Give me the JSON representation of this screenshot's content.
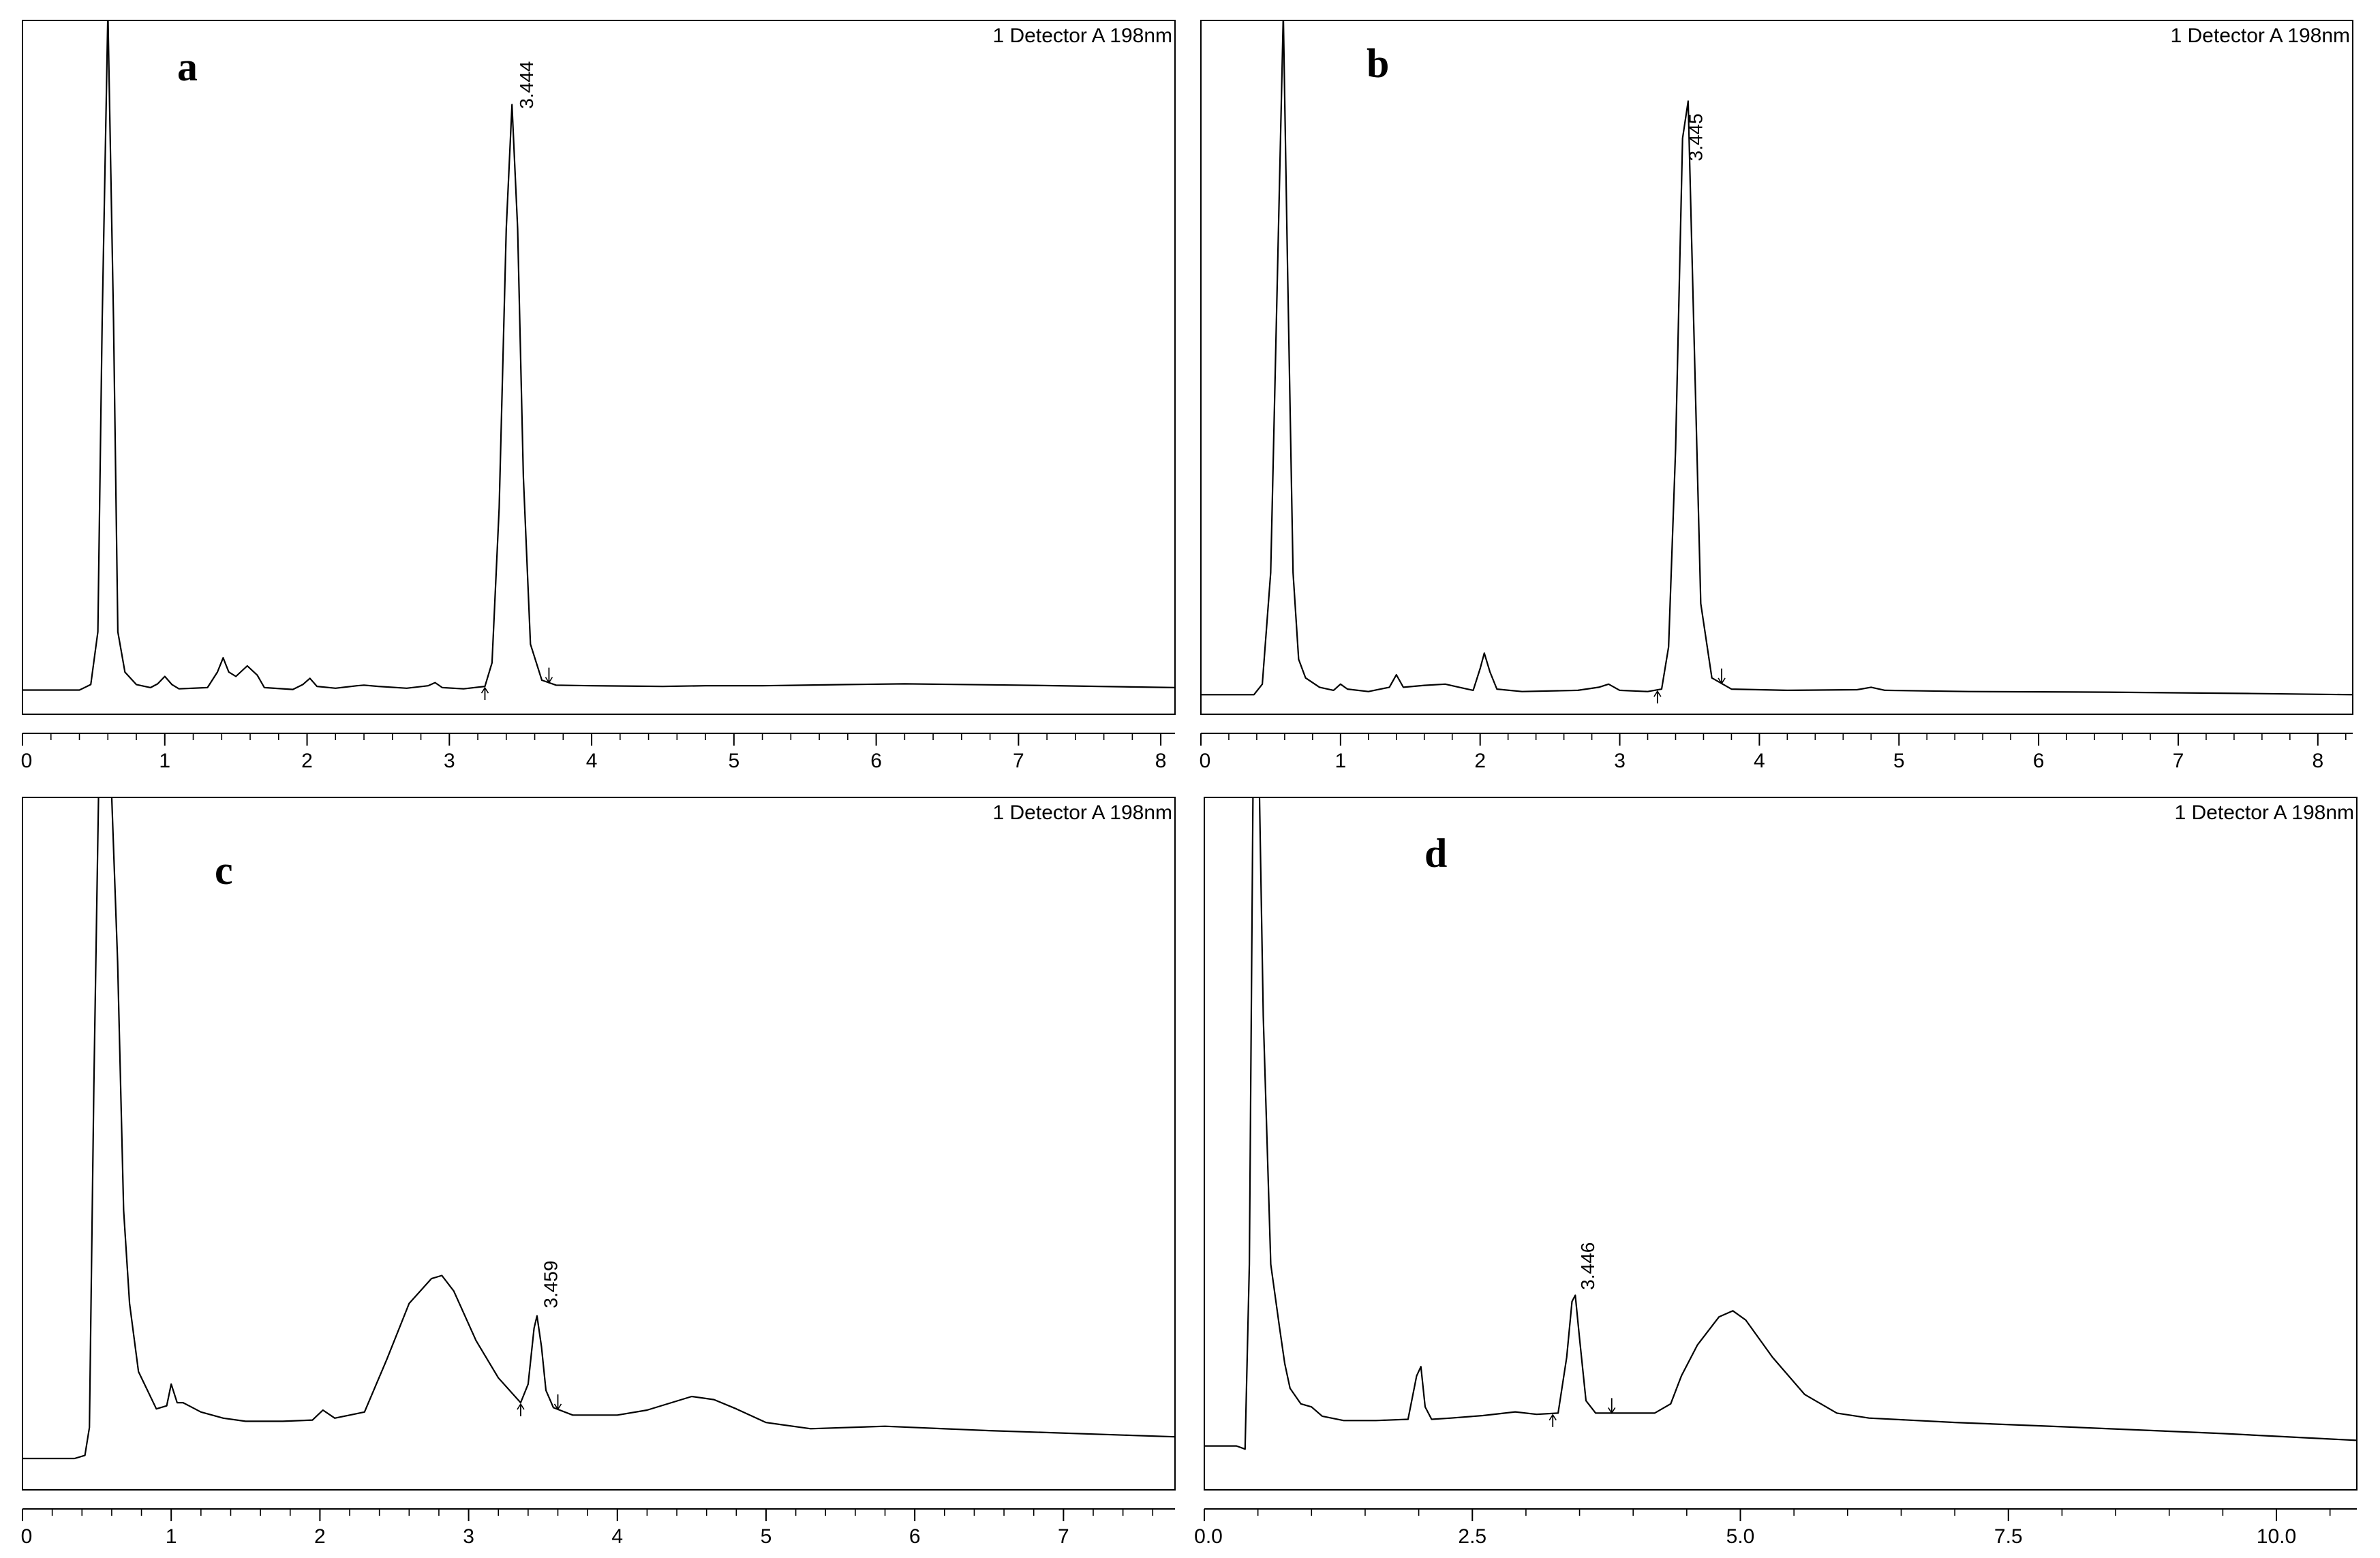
{
  "chart_data": [
    {
      "type": "line",
      "panel_label": "a",
      "detector_label": "1 Detector A 198nm",
      "xlim": [
        0,
        8.1
      ],
      "ylim": [
        0,
        100
      ],
      "xticks": [
        0,
        1,
        2,
        3,
        4,
        5,
        6,
        7,
        8
      ],
      "xtick_labels": [
        "0",
        "1",
        "2",
        "3",
        "4",
        "5",
        "6",
        "7",
        "8"
      ],
      "peak_annotation": {
        "x": 3.444,
        "label": "3.444"
      },
      "integration_marks": [
        3.25,
        3.7
      ],
      "series": [
        {
          "x": [
            0,
            0.4,
            0.48,
            0.53,
            0.56,
            0.6,
            0.64,
            0.67,
            0.72,
            0.8,
            0.9,
            0.95,
            1.0,
            1.05,
            1.1,
            1.3,
            1.37,
            1.41,
            1.45,
            1.5,
            1.58,
            1.65,
            1.7,
            1.9,
            1.97,
            2.02,
            2.07,
            2.2,
            2.35,
            2.4,
            2.5,
            2.7,
            2.85,
            2.9,
            2.95,
            3.1,
            3.25,
            3.3,
            3.35,
            3.4,
            3.44,
            3.48,
            3.52,
            3.57,
            3.65,
            3.75,
            4.0,
            4.5,
            4.8,
            5.2,
            5.8,
            6.2,
            7.0,
            8.1
          ],
          "y": [
            0.6,
            0.6,
            1.5,
            10,
            60,
            110,
            60,
            10,
            3.5,
            1.5,
            1.0,
            1.6,
            2.8,
            1.5,
            0.8,
            1.0,
            3.5,
            5.8,
            3.5,
            2.8,
            4.5,
            3.0,
            1.0,
            0.7,
            1.5,
            2.5,
            1.2,
            0.9,
            1.3,
            1.4,
            1.2,
            0.9,
            1.3,
            1.8,
            1.0,
            0.8,
            1.2,
            5,
            30,
            75,
            95,
            75,
            35,
            8,
            2.2,
            1.4,
            1.3,
            1.2,
            1.3,
            1.3,
            1.5,
            1.6,
            1.4,
            1.0
          ]
        }
      ]
    },
    {
      "type": "line",
      "panel_label": "b",
      "detector_label": "1 Detector A 198nm",
      "xlim": [
        0,
        8.25
      ],
      "ylim": [
        0,
        100
      ],
      "xticks": [
        0,
        1,
        2,
        3,
        4,
        5,
        6,
        7,
        8
      ],
      "xtick_labels": [
        "0",
        "1",
        "2",
        "3",
        "4",
        "5",
        "6",
        "7",
        "8"
      ],
      "peak_annotation": {
        "x": 3.445,
        "label": "3.445"
      },
      "integration_marks": [
        3.27,
        3.73
      ],
      "series": [
        {
          "x": [
            0,
            0.38,
            0.44,
            0.5,
            0.55,
            0.59,
            0.62,
            0.66,
            0.7,
            0.75,
            0.85,
            0.95,
            1.0,
            1.05,
            1.2,
            1.35,
            1.4,
            1.45,
            1.6,
            1.75,
            1.85,
            1.95,
            2.0,
            2.03,
            2.07,
            2.12,
            2.3,
            2.7,
            2.85,
            2.92,
            3.0,
            3.2,
            3.3,
            3.35,
            3.4,
            3.45,
            3.49,
            3.53,
            3.58,
            3.66,
            3.8,
            4.2,
            4.7,
            4.8,
            4.9,
            5.5,
            6.5,
            7.5,
            8.25
          ],
          "y": [
            0.3,
            0.3,
            2.0,
            20,
            70,
            110,
            70,
            20,
            6.0,
            3.0,
            1.5,
            1.0,
            2.0,
            1.2,
            0.8,
            1.5,
            3.5,
            1.5,
            1.8,
            2.0,
            1.5,
            1.0,
            4.5,
            7.0,
            4.0,
            1.2,
            0.8,
            1.0,
            1.5,
            2.0,
            1.0,
            0.8,
            1.2,
            8,
            40,
            90,
            96,
            60,
            15,
            3.0,
            1.2,
            1.0,
            1.1,
            1.5,
            1.0,
            0.8,
            0.7,
            0.5,
            0.3
          ]
        }
      ]
    },
    {
      "type": "line",
      "panel_label": "c",
      "detector_label": "1 Detector A 198nm",
      "xlim": [
        0,
        7.75
      ],
      "ylim": [
        0,
        100
      ],
      "xticks": [
        0,
        1,
        2,
        3,
        4,
        5,
        6,
        7
      ],
      "xtick_labels": [
        "0",
        "1",
        "2",
        "3",
        "4",
        "5",
        "6",
        "7"
      ],
      "peak_annotation": {
        "x": 3.459,
        "label": "3.459"
      },
      "integration_marks": [
        3.35,
        3.6
      ],
      "series": [
        {
          "x": [
            0,
            0.35,
            0.42,
            0.45,
            0.48,
            0.52,
            0.58,
            0.64,
            0.68,
            0.72,
            0.78,
            0.9,
            0.97,
            1.0,
            1.04,
            1.08,
            1.12,
            1.2,
            1.35,
            1.5,
            1.75,
            1.95,
            2.02,
            2.1,
            2.3,
            2.45,
            2.6,
            2.75,
            2.82,
            2.9,
            3.05,
            3.2,
            3.35,
            3.4,
            3.44,
            3.46,
            3.49,
            3.52,
            3.57,
            3.7,
            4.0,
            4.2,
            4.5,
            4.65,
            4.8,
            5.0,
            5.3,
            5.8,
            6.5,
            7.75
          ],
          "y": [
            0,
            0,
            0.5,
            5,
            60,
            120,
            120,
            80,
            40,
            25,
            14,
            8,
            8.5,
            12,
            9,
            9,
            8.5,
            7.5,
            6.5,
            6.0,
            6.0,
            6.2,
            7.8,
            6.5,
            7.5,
            16,
            25,
            29,
            29.5,
            27,
            19,
            13,
            9,
            12,
            21,
            23,
            18,
            11,
            8.2,
            7.0,
            7.0,
            7.8,
            10,
            9.5,
            8.0,
            5.8,
            4.8,
            5.2,
            4.5,
            3.5
          ]
        }
      ]
    },
    {
      "type": "line",
      "panel_label": "d",
      "detector_label": "1 Detector A 198nm",
      "xlim": [
        0,
        10.75
      ],
      "ylim": [
        0,
        100
      ],
      "xticks": [
        0,
        2.5,
        5.0,
        7.5,
        10.0
      ],
      "xtick_labels": [
        "0.0",
        "2.5",
        "5.0",
        "7.5",
        "10.0"
      ],
      "peak_annotation": {
        "x": 3.446,
        "label": "3.446"
      },
      "integration_marks": [
        3.25,
        3.8
      ],
      "series": [
        {
          "x": [
            0,
            0.3,
            0.38,
            0.42,
            0.46,
            0.5,
            0.55,
            0.62,
            0.7,
            0.75,
            0.8,
            0.9,
            1.0,
            1.1,
            1.3,
            1.6,
            1.9,
            1.98,
            2.02,
            2.06,
            2.12,
            2.3,
            2.6,
            2.9,
            3.1,
            3.3,
            3.38,
            3.43,
            3.46,
            3.5,
            3.56,
            3.65,
            3.9,
            4.2,
            4.35,
            4.45,
            4.6,
            4.8,
            4.93,
            5.05,
            5.3,
            5.6,
            5.9,
            6.2,
            7.0,
            8.0,
            9.5,
            10.75
          ],
          "y": [
            0.7,
            0.7,
            0.2,
            30,
            120,
            120,
            70,
            30,
            20,
            14,
            10,
            7.5,
            7.0,
            5.5,
            4.8,
            4.8,
            5.0,
            12,
            13.5,
            7,
            5.0,
            5.2,
            5.6,
            6.2,
            5.8,
            6.0,
            15,
            24,
            25,
            18,
            8,
            6.0,
            6.0,
            6.0,
            7.5,
            12,
            17,
            21.5,
            22.5,
            21,
            15,
            9,
            6.0,
            5.2,
            4.5,
            3.8,
            2.7,
            1.6
          ]
        }
      ]
    }
  ]
}
